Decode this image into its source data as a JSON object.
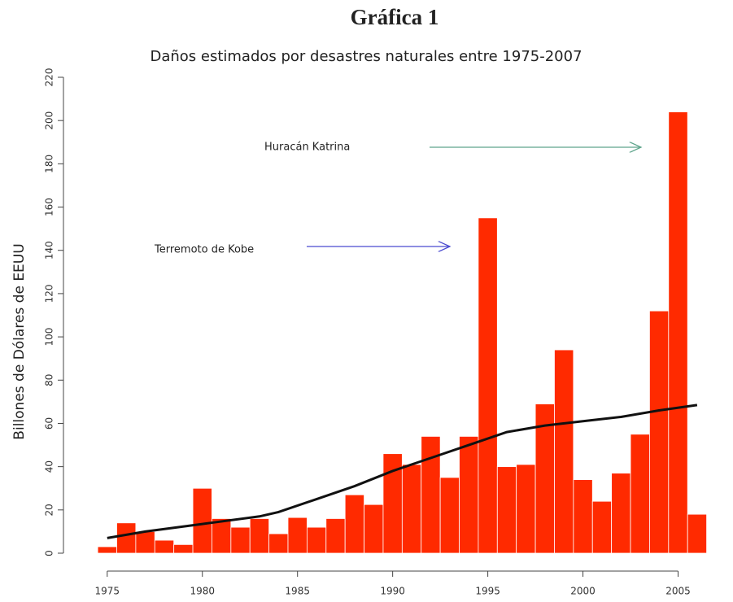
{
  "chart_data": {
    "type": "bar",
    "heading": "Gráfica 1",
    "title": "Daños estimados por desastres naturales entre 1975-2007",
    "y_label": "Billones de Dólares de EEUU",
    "annotations": [
      "Huracán Katrina",
      "Terremoto de Kobe"
    ],
    "x": [
      1975,
      1976,
      1977,
      1978,
      1979,
      1980,
      1981,
      1982,
      1983,
      1984,
      1985,
      1986,
      1987,
      1988,
      1989,
      1990,
      1991,
      1992,
      1993,
      1994,
      1995,
      1996,
      1997,
      1998,
      1999,
      2000,
      2001,
      2002,
      2003,
      2004,
      2005,
      2006
    ],
    "values": [
      3,
      14,
      10,
      6,
      4,
      30,
      16,
      12,
      16,
      9,
      16.5,
      12,
      16,
      27,
      22.5,
      46,
      41,
      54,
      35,
      54,
      155,
      40,
      41,
      69,
      94,
      34,
      24,
      37,
      55,
      112,
      204,
      18
    ],
    "color": "#ff2a00",
    "trend": {
      "x": [
        1975,
        1977,
        1980,
        1983,
        1984,
        1986,
        1988,
        1990,
        1992,
        1994,
        1996,
        1998,
        2000,
        2002,
        2004,
        2006
      ],
      "values": [
        7,
        10,
        13.5,
        17,
        19,
        25,
        31,
        38,
        44,
        50,
        56,
        59,
        61,
        63,
        66,
        68.5
      ],
      "color": "#111111"
    },
    "xlim": [
      1972.7,
      2007.8
    ],
    "ylim": [
      0,
      220
    ],
    "xticks": [
      1975,
      1980,
      1985,
      1990,
      1995,
      2000,
      2005
    ],
    "yticks": [
      0,
      20,
      40,
      60,
      80,
      100,
      120,
      140,
      160,
      180,
      200,
      220
    ]
  }
}
